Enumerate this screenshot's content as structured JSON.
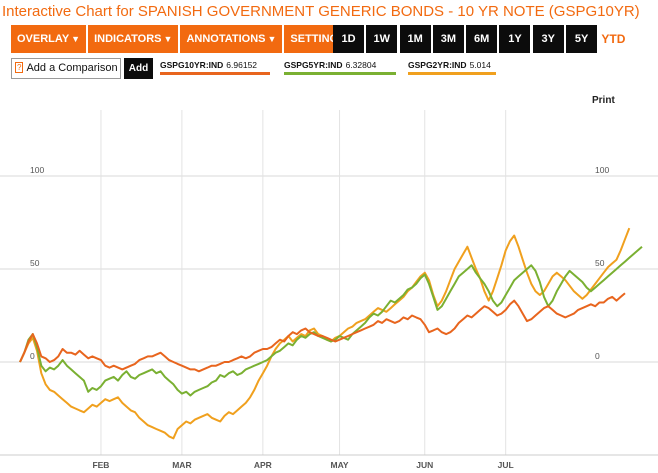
{
  "page": {
    "title": "Interactive Chart for SPANISH GOVERNMENT GENERIC BONDS - 10 YR NOTE (GSPG10YR)"
  },
  "toolbar": {
    "menus": [
      {
        "label": "OVERLAY",
        "icon": "caret-down-icon"
      },
      {
        "label": "INDICATORS",
        "icon": "caret-down-icon"
      },
      {
        "label": "ANNOTATIONS",
        "icon": "caret-down-icon"
      },
      {
        "label": "SETTINGS",
        "icon": "caret-down-icon"
      }
    ],
    "ranges": [
      "1D",
      "1W",
      "1M",
      "3M",
      "6M",
      "1Y",
      "3Y",
      "5Y",
      "YTD"
    ],
    "active_range": "YTD"
  },
  "comparison": {
    "help_glyph": "?",
    "label": "Add a Comparison",
    "add_label": "Add"
  },
  "print_label": "Print",
  "chart_data": {
    "type": "line",
    "title": "",
    "xlabel": "",
    "ylabel": "",
    "ylim": [
      -53,
      135
    ],
    "yticks": [
      0,
      50,
      100
    ],
    "grid": true,
    "legend_position": "top-left",
    "x_labels": [
      "FEB",
      "MAR",
      "APR",
      "MAY",
      "JUN",
      "JUL"
    ],
    "x_label_index": [
      19,
      38,
      57,
      75,
      95,
      114
    ],
    "series": [
      {
        "name": "GSPG10YR:IND",
        "value_label": "6.96152",
        "color": "#e8651e",
        "values": [
          0,
          5,
          11,
          15,
          10,
          3,
          2,
          0,
          1,
          3,
          7,
          5,
          5,
          4,
          6,
          4,
          2,
          3,
          2,
          1,
          -2,
          -3,
          -2,
          -3,
          -4,
          -3,
          -2,
          -1,
          1,
          2,
          3,
          3,
          4,
          5,
          3,
          1,
          0,
          -1,
          -2,
          -3,
          -4,
          -4,
          -5,
          -4,
          -3,
          -2,
          -2,
          -1,
          0,
          0,
          1,
          2,
          3,
          2,
          3,
          5,
          6,
          7,
          7,
          8,
          10,
          12,
          11,
          14,
          16,
          15,
          17,
          18,
          16,
          15,
          14,
          14,
          13,
          12,
          11,
          12,
          13,
          14,
          15,
          16,
          17,
          18,
          19,
          20,
          22,
          21,
          23,
          22,
          21,
          22,
          24,
          23,
          25,
          24,
          23,
          20,
          16,
          17,
          18,
          16,
          15,
          16,
          18,
          21,
          23,
          25,
          24,
          26,
          28,
          30,
          29,
          27,
          25,
          26,
          28,
          31,
          33,
          30,
          26,
          22,
          23,
          25,
          27,
          29,
          30,
          28,
          26,
          25,
          24,
          25,
          26,
          28,
          29,
          30,
          31,
          30,
          32,
          32,
          34,
          35,
          33,
          35,
          37
        ]
      },
      {
        "name": "GSPG5YR:IND",
        "value_label": "6.32804",
        "color": "#7ab032",
        "values": [
          0,
          5,
          12,
          15,
          8,
          -2,
          -5,
          -3,
          -4,
          -2,
          1,
          -2,
          -4,
          -6,
          -8,
          -10,
          -16,
          -14,
          -15,
          -13,
          -10,
          -9,
          -8,
          -10,
          -7,
          -5,
          -8,
          -9,
          -7,
          -6,
          -5,
          -4,
          -6,
          -5,
          -8,
          -10,
          -12,
          -15,
          -17,
          -16,
          -18,
          -16,
          -15,
          -14,
          -13,
          -11,
          -10,
          -7,
          -8,
          -6,
          -5,
          -7,
          -6,
          -4,
          -3,
          -2,
          -1,
          0,
          1,
          3,
          5,
          6,
          8,
          10,
          9,
          12,
          14,
          13,
          15,
          16,
          14,
          13,
          12,
          11,
          12,
          14,
          13,
          12,
          15,
          17,
          19,
          21,
          24,
          26,
          25,
          27,
          30,
          33,
          32,
          34,
          36,
          39,
          40,
          42,
          45,
          47,
          42,
          35,
          28,
          30,
          34,
          38,
          42,
          46,
          48,
          50,
          52,
          48,
          45,
          42,
          38,
          33,
          30,
          32,
          36,
          40,
          44,
          46,
          48,
          50,
          52,
          49,
          43,
          35,
          30,
          33,
          38,
          42,
          46,
          49,
          47,
          45,
          43,
          40,
          38,
          40,
          42,
          44,
          46,
          48,
          50,
          52,
          54,
          56,
          58,
          60,
          62
        ]
      },
      {
        "name": "GSPG2YR:IND",
        "value_label": "5.014",
        "color": "#f0a01e",
        "values": [
          0,
          5,
          10,
          13,
          6,
          -6,
          -12,
          -15,
          -16,
          -18,
          -20,
          -22,
          -24,
          -25,
          -26,
          -27,
          -25,
          -23,
          -24,
          -22,
          -20,
          -21,
          -20,
          -19,
          -22,
          -24,
          -26,
          -27,
          -30,
          -32,
          -34,
          -35,
          -36,
          -37,
          -38,
          -40,
          -41,
          -36,
          -34,
          -32,
          -33,
          -31,
          -30,
          -29,
          -28,
          -30,
          -31,
          -32,
          -29,
          -27,
          -28,
          -26,
          -24,
          -22,
          -19,
          -15,
          -10,
          -6,
          -2,
          3,
          7,
          10,
          12,
          14,
          11,
          13,
          15,
          14,
          17,
          18,
          15,
          14,
          12,
          11,
          13,
          14,
          16,
          18,
          19,
          21,
          22,
          23,
          25,
          27,
          29,
          28,
          27,
          29,
          31,
          33,
          35,
          38,
          40,
          43,
          46,
          48,
          44,
          36,
          30,
          33,
          38,
          44,
          50,
          54,
          58,
          62,
          56,
          50,
          45,
          38,
          33,
          38,
          45,
          52,
          60,
          65,
          68,
          62,
          55,
          48,
          42,
          38,
          36,
          38,
          42,
          46,
          48,
          46,
          44,
          41,
          38,
          36,
          34,
          36,
          39,
          42,
          45,
          48,
          51,
          53,
          55,
          60,
          66,
          72
        ]
      }
    ]
  }
}
